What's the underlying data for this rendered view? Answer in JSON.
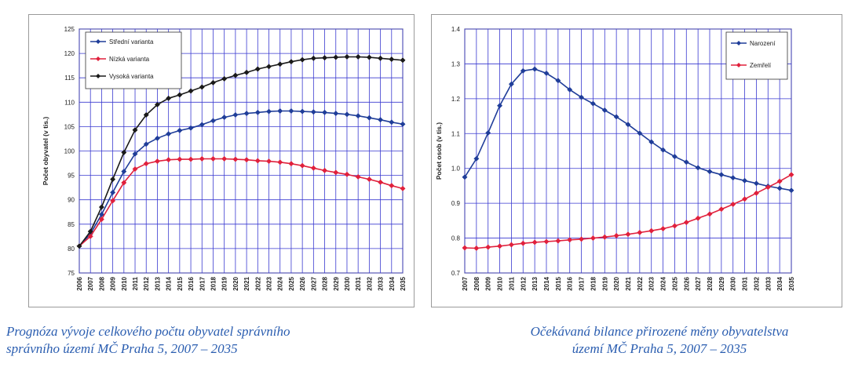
{
  "charts": {
    "left": {
      "caption": [
        "Prognóza vývoje celkového počtu obyvatel správního",
        "správního území MČ Praha 5, 2007 – 2035"
      ]
    },
    "right": {
      "caption": [
        "Očekávaná bilance přirozené měny obyvatelstva",
        "území MČ Praha 5, 2007 – 2035"
      ]
    }
  },
  "colors": {
    "blue": "#1f3d99",
    "red": "#e0203c",
    "black": "#1a1a1a",
    "grid": "#3a3ad0",
    "bg": "#ffffff"
  },
  "chart_data": [
    {
      "type": "line",
      "title": "",
      "xlabel": "",
      "ylabel": "Počet obyvatel (v tis.)",
      "ylim": [
        75,
        125
      ],
      "yticks": [
        75,
        80,
        85,
        90,
        95,
        100,
        105,
        110,
        115,
        120,
        125
      ],
      "x": [
        "2006",
        "2007",
        "2008",
        "2009",
        "2010",
        "2011",
        "2012",
        "2013",
        "2014",
        "2015",
        "2016",
        "2017",
        "2018",
        "2019",
        "2020",
        "2021",
        "2022",
        "2023",
        "2024",
        "2025",
        "2026",
        "2027",
        "2028",
        "2029",
        "2030",
        "2031",
        "2032",
        "2033",
        "2034",
        "2035"
      ],
      "grid": "both",
      "legend": "top-left",
      "series": [
        {
          "name": "Střední varianta",
          "color": "#1f3d99",
          "values": [
            80.5,
            83.0,
            87.0,
            91.5,
            95.8,
            99.4,
            101.4,
            102.6,
            103.5,
            104.2,
            104.7,
            105.4,
            106.2,
            106.9,
            107.4,
            107.7,
            107.9,
            108.1,
            108.2,
            108.2,
            108.1,
            108.0,
            107.9,
            107.7,
            107.5,
            107.2,
            106.8,
            106.4,
            105.9,
            105.5
          ]
        },
        {
          "name": "Nízká varianta",
          "color": "#e0203c",
          "values": [
            80.5,
            82.5,
            86.0,
            89.8,
            93.5,
            96.3,
            97.4,
            97.9,
            98.2,
            98.3,
            98.3,
            98.4,
            98.4,
            98.4,
            98.3,
            98.2,
            98.0,
            97.9,
            97.7,
            97.4,
            97.0,
            96.5,
            96.0,
            95.6,
            95.2,
            94.7,
            94.2,
            93.6,
            92.9,
            92.3
          ]
        },
        {
          "name": "Vysoká varianta",
          "color": "#1a1a1a",
          "values": [
            80.5,
            83.5,
            88.5,
            94.2,
            99.7,
            104.3,
            107.4,
            109.5,
            110.8,
            111.5,
            112.3,
            113.1,
            114.0,
            114.8,
            115.5,
            116.1,
            116.8,
            117.3,
            117.8,
            118.3,
            118.7,
            119.0,
            119.1,
            119.2,
            119.3,
            119.3,
            119.2,
            119.0,
            118.8,
            118.6
          ]
        }
      ]
    },
    {
      "type": "line",
      "title": "",
      "xlabel": "",
      "ylabel": "Počet osob (v tis.)",
      "ylim": [
        0.7,
        1.4
      ],
      "yticks": [
        "0.7",
        "0.8",
        "0.9",
        "1.0",
        "1.1",
        "1.2",
        "1.3",
        "1.4"
      ],
      "x": [
        "2007",
        "2008",
        "2009",
        "2010",
        "2011",
        "2012",
        "2013",
        "2014",
        "2015",
        "2016",
        "2017",
        "2018",
        "2019",
        "2020",
        "2021",
        "2022",
        "2023",
        "2024",
        "2025",
        "2026",
        "2027",
        "2028",
        "2029",
        "2030",
        "2031",
        "2032",
        "2033",
        "2034",
        "2035"
      ],
      "grid": "both",
      "legend": "top-right",
      "series": [
        {
          "name": "Narození",
          "color": "#1f3d99",
          "values": [
            0.975,
            1.028,
            1.102,
            1.18,
            1.242,
            1.28,
            1.285,
            1.273,
            1.252,
            1.226,
            1.204,
            1.186,
            1.167,
            1.148,
            1.126,
            1.101,
            1.076,
            1.053,
            1.034,
            1.018,
            1.002,
            0.991,
            0.982,
            0.973,
            0.965,
            0.957,
            0.949,
            0.943,
            0.937
          ]
        },
        {
          "name": "Zemřelí",
          "color": "#e0203c",
          "values": [
            0.772,
            0.771,
            0.774,
            0.777,
            0.781,
            0.785,
            0.788,
            0.79,
            0.792,
            0.795,
            0.797,
            0.8,
            0.803,
            0.807,
            0.811,
            0.816,
            0.821,
            0.827,
            0.835,
            0.845,
            0.857,
            0.869,
            0.883,
            0.897,
            0.912,
            0.929,
            0.946,
            0.963,
            0.982
          ]
        }
      ]
    }
  ]
}
